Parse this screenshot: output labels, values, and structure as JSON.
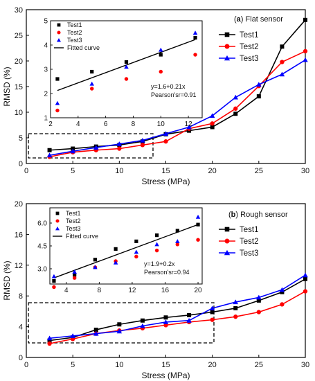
{
  "chart_data": [
    {
      "type": "line",
      "title_letter": "a",
      "title_text": "Flat sensor",
      "xlabel": "Stress (MPa)",
      "ylabel": "RMSD (%)",
      "xlim": [
        0,
        30
      ],
      "ylim": [
        0,
        30
      ],
      "xticks": [
        0,
        5,
        10,
        15,
        20,
        25,
        30
      ],
      "yticks": [
        0,
        5,
        10,
        15,
        20,
        25,
        30
      ],
      "legend_position": "top-right",
      "colors": {
        "Test1": "#000000",
        "Test2": "#ff0000",
        "Test3": "#0000ff"
      },
      "series": [
        {
          "name": "Test1",
          "marker": "square",
          "x": [
            2.5,
            5,
            7.5,
            10,
            12.5,
            15,
            17.5,
            20,
            22.5,
            25,
            27.5,
            30
          ],
          "values": [
            2.6,
            2.9,
            3.3,
            3.6,
            4.3,
            5.7,
            6.4,
            7.1,
            9.7,
            13.1,
            22.8,
            28.0
          ]
        },
        {
          "name": "Test2",
          "marker": "circle",
          "x": [
            2.5,
            5,
            7.5,
            10,
            12.5,
            15,
            17.5,
            20,
            22.5,
            25,
            27.5,
            30
          ],
          "values": [
            1.3,
            2.2,
            2.6,
            2.9,
            3.6,
            4.3,
            6.8,
            7.8,
            10.7,
            15.1,
            19.8,
            21.9
          ]
        },
        {
          "name": "Test3",
          "marker": "triangle",
          "x": [
            2.5,
            5,
            7.5,
            10,
            12.5,
            15,
            17.5,
            20,
            22.5,
            25,
            27.5,
            30
          ],
          "values": [
            1.6,
            2.4,
            3.1,
            3.8,
            4.5,
            5.8,
            7.1,
            9.3,
            12.9,
            15.4,
            17.4,
            20.2
          ]
        }
      ],
      "inset": {
        "xlim": [
          2,
          13
        ],
        "ylim": [
          1,
          5
        ],
        "xticks": [
          2,
          4,
          6,
          8,
          10,
          12
        ],
        "yticks": [
          1,
          2,
          3,
          4,
          5
        ],
        "legend": [
          "Test1",
          "Test2",
          "Test3",
          "Fitted curve"
        ],
        "annotation_lines": [
          "y=1.6+0.21x",
          "Pearson'sr=0.91"
        ],
        "fit": {
          "intercept": 1.6,
          "slope": 0.21,
          "x": [
            2.5,
            12.5
          ]
        },
        "series": [
          {
            "name": "Test1",
            "x": [
              2.5,
              5,
              7.5,
              10,
              12.5
            ],
            "values": [
              2.6,
              2.9,
              3.3,
              3.6,
              4.3
            ]
          },
          {
            "name": "Test2",
            "x": [
              2.5,
              5,
              7.5,
              10,
              12.5
            ],
            "values": [
              1.3,
              2.2,
              2.6,
              2.9,
              3.6
            ]
          },
          {
            "name": "Test3",
            "x": [
              2.5,
              5,
              7.5,
              10,
              12.5
            ],
            "values": [
              1.6,
              2.4,
              3.1,
              3.8,
              4.5
            ]
          }
        ]
      }
    },
    {
      "type": "line",
      "title_letter": "b",
      "title_text": "Rough sensor",
      "xlabel": "Stress (MPa)",
      "ylabel": "RMSD (%)",
      "xlim": [
        0,
        30
      ],
      "ylim": [
        0,
        20
      ],
      "xticks": [
        0,
        5,
        10,
        15,
        20,
        25,
        30
      ],
      "yticks": [
        0,
        4,
        8,
        12,
        16,
        20
      ],
      "legend_position": "top-right",
      "colors": {
        "Test1": "#000000",
        "Test2": "#ff0000",
        "Test3": "#0000ff"
      },
      "series": [
        {
          "name": "Test1",
          "marker": "square",
          "x": [
            2.5,
            5,
            7.5,
            10,
            12.5,
            15,
            17.5,
            20,
            22.5,
            25,
            27.5,
            30
          ],
          "values": [
            2.2,
            2.6,
            3.6,
            4.3,
            4.8,
            5.2,
            5.5,
            5.9,
            6.4,
            7.4,
            8.5,
            10.2
          ]
        },
        {
          "name": "Test2",
          "marker": "circle",
          "x": [
            2.5,
            5,
            7.5,
            10,
            12.5,
            15,
            17.5,
            20,
            22.5,
            25,
            27.5,
            30
          ],
          "values": [
            1.8,
            2.4,
            3.1,
            3.5,
            3.8,
            4.2,
            4.6,
            4.9,
            5.3,
            5.9,
            6.9,
            8.6
          ]
        },
        {
          "name": "Test3",
          "marker": "triangle",
          "x": [
            2.5,
            5,
            7.5,
            10,
            12.5,
            15,
            17.5,
            20,
            22.5,
            25,
            27.5,
            30
          ],
          "values": [
            2.5,
            2.8,
            3.1,
            3.4,
            4.1,
            4.6,
            4.8,
            6.4,
            7.2,
            7.8,
            8.8,
            10.7
          ]
        }
      ],
      "inset": {
        "xlim": [
          2,
          20.5
        ],
        "ylim": [
          2,
          7
        ],
        "xticks": [
          4,
          8,
          12,
          16,
          20
        ],
        "yticks": [
          3.0,
          4.5,
          6.0
        ],
        "legend": [
          "Test1",
          "Test2",
          "Test3",
          "Fitted curve"
        ],
        "annotation_lines": [
          "y=1.9+0.2x",
          "Pearson'sr=0.94"
        ],
        "fit": {
          "intercept": 1.9,
          "slope": 0.2,
          "x": [
            2.5,
            20
          ]
        },
        "series": [
          {
            "name": "Test1",
            "x": [
              2.5,
              5,
              7.5,
              10,
              12.5,
              15,
              17.5,
              20
            ],
            "values": [
              2.2,
              2.6,
              3.6,
              4.3,
              4.8,
              5.2,
              5.5,
              5.9
            ]
          },
          {
            "name": "Test2",
            "x": [
              2.5,
              5,
              7.5,
              10,
              12.5,
              15,
              17.5,
              20
            ],
            "values": [
              1.8,
              2.4,
              3.1,
              3.5,
              3.8,
              4.2,
              4.6,
              4.9
            ]
          },
          {
            "name": "Test3",
            "x": [
              2.5,
              5,
              7.5,
              10,
              12.5,
              15,
              17.5,
              20
            ],
            "values": [
              2.5,
              2.8,
              3.1,
              3.4,
              4.1,
              4.6,
              4.8,
              6.4
            ]
          }
        ]
      }
    }
  ]
}
